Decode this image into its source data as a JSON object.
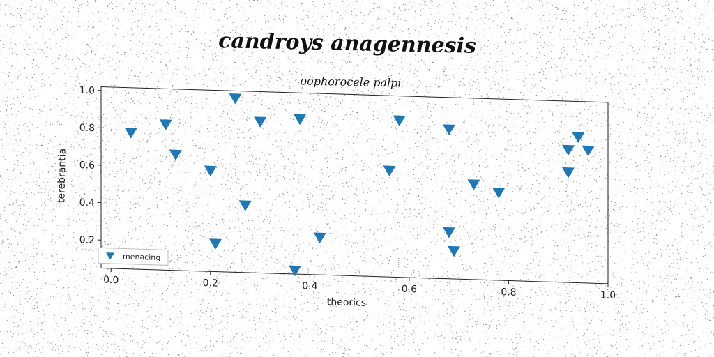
{
  "chart_data": {
    "type": "scatter",
    "title": "candroys anagennesis",
    "subtitle": "oophorocele palpi",
    "xlabel": "theorics",
    "ylabel": "terebrantia",
    "xlim": [
      -0.02,
      1.0
    ],
    "ylim": [
      0.05,
      1.02
    ],
    "xticks": [
      "0.0",
      "0.2",
      "0.4",
      "0.6",
      "0.8",
      "1.0"
    ],
    "yticks": [
      "0.2",
      "0.4",
      "0.6",
      "0.8",
      "1.0"
    ],
    "xtick_values": [
      0.0,
      0.2,
      0.4,
      0.6,
      0.8,
      1.0
    ],
    "ytick_values": [
      0.2,
      0.4,
      0.6,
      0.8,
      1.0
    ],
    "legend_position": "lower-left",
    "grid": false,
    "series": [
      {
        "name": "menacing",
        "color": "#1f77b4",
        "marker": "triangle-down",
        "points": [
          {
            "x": 0.04,
            "y": 0.78
          },
          {
            "x": 0.11,
            "y": 0.83
          },
          {
            "x": 0.13,
            "y": 0.67
          },
          {
            "x": 0.2,
            "y": 0.59
          },
          {
            "x": 0.21,
            "y": 0.2
          },
          {
            "x": 0.25,
            "y": 0.98
          },
          {
            "x": 0.27,
            "y": 0.41
          },
          {
            "x": 0.3,
            "y": 0.86
          },
          {
            "x": 0.37,
            "y": 0.07
          },
          {
            "x": 0.38,
            "y": 0.88
          },
          {
            "x": 0.42,
            "y": 0.25
          },
          {
            "x": 0.56,
            "y": 0.62
          },
          {
            "x": 0.58,
            "y": 0.89
          },
          {
            "x": 0.68,
            "y": 0.85
          },
          {
            "x": 0.68,
            "y": 0.3
          },
          {
            "x": 0.69,
            "y": 0.2
          },
          {
            "x": 0.73,
            "y": 0.56
          },
          {
            "x": 0.78,
            "y": 0.52
          },
          {
            "x": 0.92,
            "y": 0.76
          },
          {
            "x": 0.92,
            "y": 0.64
          },
          {
            "x": 0.94,
            "y": 0.83
          },
          {
            "x": 0.96,
            "y": 0.76
          }
        ]
      }
    ]
  }
}
